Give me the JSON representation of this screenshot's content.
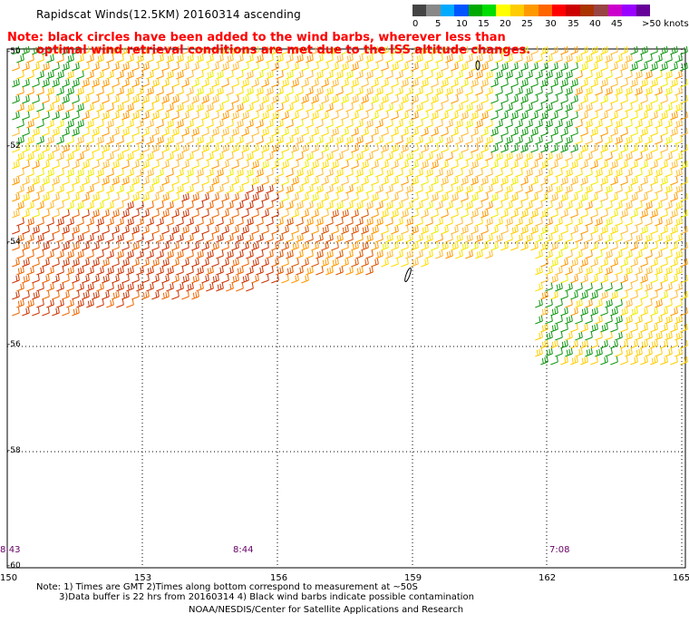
{
  "title": "Rapidscat Winds(12.5KM) 20160314 ascending",
  "note": {
    "line1": "Note: black circles have been added to the wind barbs, wherever less than",
    "line2": "optimal wind retrieval conditions are met due to the ISS altitude changes."
  },
  "scale": {
    "labels": [
      "0",
      "5",
      "10",
      "15",
      "20",
      "25",
      "30",
      "35",
      "40",
      "45",
      ">50 knots"
    ],
    "colors": [
      "#444444",
      "#888888",
      "#00aaff",
      "#0055ff",
      "#00aa00",
      "#00dd00",
      "#ffff00",
      "#ffcc00",
      "#ff9900",
      "#ff6600",
      "#ff0000",
      "#cc0000",
      "#aa3300",
      "#994444",
      "#cc00cc",
      "#9900ff",
      "#660099"
    ]
  },
  "axes": {
    "lat_labels": [
      "-50",
      "-52",
      "-54",
      "-56",
      "-58",
      "-60"
    ],
    "lon_labels": [
      "150",
      "153",
      "156",
      "159",
      "162",
      "165"
    ]
  },
  "times": [
    "8:43",
    "8:44",
    "7:08"
  ],
  "footer": {
    "line1": "Note: 1) Times are GMT 2)Times along bottom correspond to measurement at ~50S",
    "line2": "3)Data buffer is 22 hrs from 20160314 4) Black wind barbs indicate possible contamination",
    "line3": "NOAA/NESDIS/Center for Satellite Applications and Research"
  }
}
